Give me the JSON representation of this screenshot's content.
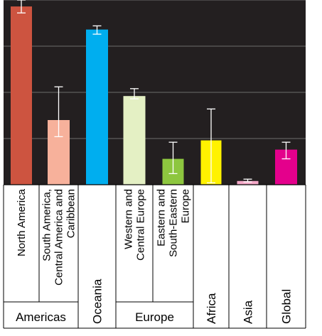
{
  "chart_data": {
    "type": "bar",
    "title": "",
    "xlabel": "",
    "ylabel": "",
    "ylim": [
      0,
      100
    ],
    "grid": true,
    "categories": [
      {
        "label_lines": [
          "North America"
        ]
      },
      {
        "label_lines": [
          "South America,",
          "Central America and",
          "Caribbean"
        ]
      },
      {
        "label_lines": [
          "Oceania"
        ]
      },
      {
        "label_lines": [
          "Western and",
          "Central Europe"
        ]
      },
      {
        "label_lines": [
          "Eastern and",
          "South-Eastern",
          "Europe"
        ]
      },
      {
        "label_lines": [
          "Africa"
        ]
      },
      {
        "label_lines": [
          "Asia"
        ]
      },
      {
        "label_lines": [
          "Global"
        ]
      }
    ],
    "values": [
      96.5,
      35,
      84,
      48,
      14,
      24,
      2,
      19
    ],
    "error_low": [
      93,
      26,
      81.5,
      46.5,
      6,
      1,
      1.5,
      14
    ],
    "error_high": [
      100,
      53,
      86,
      52,
      23,
      41,
      3,
      23
    ],
    "colors": [
      "#cd5440",
      "#f7b19b",
      "#00aeef",
      "#e4f0c4",
      "#8dc63f",
      "#fff200",
      "#f4a9c8",
      "#e4008c"
    ],
    "groups": [
      {
        "label": "Americas",
        "start": 0,
        "end": 1
      },
      {
        "label": "Oceania",
        "start": 2,
        "end": 2,
        "vertical": true
      },
      {
        "label": "Europe",
        "start": 3,
        "end": 4
      },
      {
        "label": "Africa",
        "start": 5,
        "end": 5,
        "vertical": true
      },
      {
        "label": "Asia",
        "start": 6,
        "end": 6,
        "vertical": true
      },
      {
        "label": "Global",
        "start": 7,
        "end": 7,
        "vertical": true
      }
    ],
    "plot_background": "#231f20",
    "gridline_color": "#6d6d6d",
    "errorbar_color": "#ffffff"
  }
}
